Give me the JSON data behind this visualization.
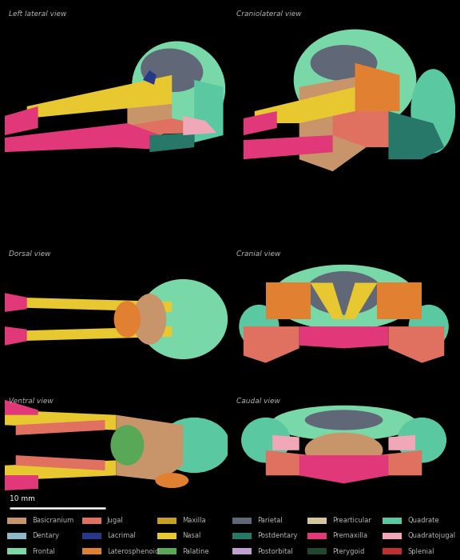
{
  "background_color": "#000000",
  "panel_labels": [
    "Left lateral view",
    "Craniolateral view",
    "Dorsal view",
    "Cranial view",
    "Ventral view",
    "Caudal view"
  ],
  "scale_bar_text": "10 mm",
  "label_color": "#b0b0b0",
  "label_fontsize": 6.5,
  "legend_fontsize": 6.0,
  "scale_fontsize": 6.5,
  "colors": {
    "basicranium": "#c8956b",
    "jugal": "#e07060",
    "maxilla": "#c8a020",
    "parietal": "#606878",
    "prearticular": "#d4c89a",
    "quadrate": "#5ac8a0",
    "dentary": "#90b8c8",
    "lacrimal": "#283888",
    "nasal": "#e8c830",
    "postdentary": "#28786a",
    "premaxilla": "#e03878",
    "quadratojugal": "#f0a8b8",
    "frontal": "#78d8a8",
    "laterosphenoid": "#e08030",
    "palatine": "#58a858",
    "postorbital": "#c0a0d0",
    "pterygoid": "#204830",
    "splenial": "#c03030"
  },
  "legend_items": [
    {
      "label": "Basicranium",
      "color": "#c8956b"
    },
    {
      "label": "Jugal",
      "color": "#e07060"
    },
    {
      "label": "Maxilla",
      "color": "#c8a020"
    },
    {
      "label": "Parietal",
      "color": "#606878"
    },
    {
      "label": "Prearticular",
      "color": "#d4c89a"
    },
    {
      "label": "Quadrate",
      "color": "#5ac8a0"
    },
    {
      "label": "Dentary",
      "color": "#90b8c8"
    },
    {
      "label": "Lacrimal",
      "color": "#283888"
    },
    {
      "label": "Nasal",
      "color": "#e8c830"
    },
    {
      "label": "Postdentary",
      "color": "#28786a"
    },
    {
      "label": "Premaxilla",
      "color": "#e03878"
    },
    {
      "label": "Quadratojugal",
      "color": "#f0a8b8"
    },
    {
      "label": "Frontal",
      "color": "#78d8a8"
    },
    {
      "label": "Laterosphenoid",
      "color": "#e08030"
    },
    {
      "label": "Palatine",
      "color": "#58a858"
    },
    {
      "label": "Postorbital",
      "color": "#c0a0d0"
    },
    {
      "label": "Pterygoid",
      "color": "#204830"
    },
    {
      "label": "Splenial",
      "color": "#c03030"
    }
  ]
}
